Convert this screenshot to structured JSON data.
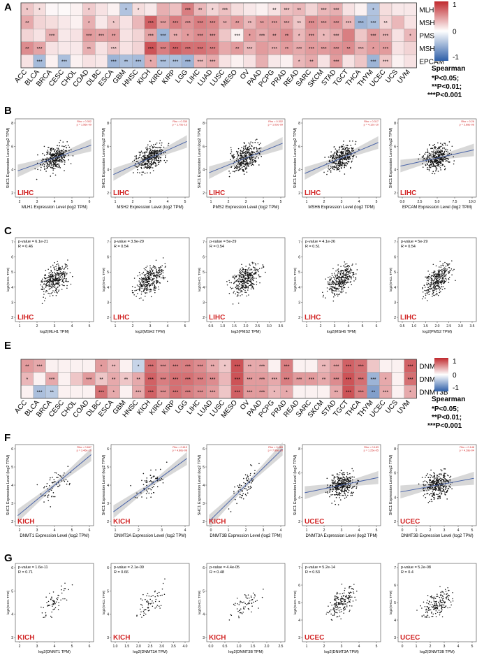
{
  "panels": {
    "A": "A",
    "B": "B",
    "C": "C",
    "E": "E",
    "F": "F",
    "G": "G"
  },
  "colors": {
    "pos": "#c0282d",
    "neg": "#2e5fa8",
    "point": "#111111",
    "fit": "#4a64a8",
    "band": "#c8c8c8",
    "tag": "#d22727"
  },
  "heatmapA": {
    "rows": [
      "MLH1",
      "MSH2",
      "PMS2",
      "MSH6",
      "EPCAM"
    ],
    "cols": [
      "ACC",
      "BLCA",
      "BRCA",
      "CESC",
      "CHOL",
      "COAD",
      "DLBC",
      "ESCA",
      "GBM",
      "HNSC",
      "KICH",
      "KIRC",
      "KIRP",
      "LGG",
      "LIHC",
      "LUAD",
      "LUSC",
      "MESO",
      "OV",
      "PAAD",
      "PCPG",
      "PRAD",
      "READ",
      "SARC",
      "SKCM",
      "STAD",
      "TGCT",
      "THCA",
      "THYM",
      "UCEC",
      "UCS",
      "UVM"
    ],
    "values": [
      [
        0.2,
        0.12,
        0.03,
        0.02,
        0.05,
        0.18,
        0.1,
        0.05,
        -0.28,
        0.12,
        0.08,
        0.28,
        0.22,
        0.45,
        0.25,
        0.15,
        0.22,
        0.12,
        0.08,
        0.05,
        0.1,
        0.22,
        0.25,
        0.15,
        0.25,
        0.28,
        0.1,
        0.05,
        -0.28,
        0.12,
        0.08,
        0.08
      ],
      [
        0.3,
        0.15,
        0.12,
        0.08,
        0.05,
        0.28,
        0.08,
        0.2,
        0.1,
        0.25,
        0.55,
        0.35,
        0.45,
        0.38,
        0.45,
        0.42,
        0.3,
        0.35,
        0.25,
        0.35,
        0.35,
        0.32,
        0.2,
        0.4,
        0.35,
        0.38,
        0.25,
        -0.35,
        -0.3,
        0.15,
        0.25,
        0.1
      ],
      [
        0.15,
        0.1,
        0.28,
        0.08,
        0.1,
        0.35,
        0.32,
        0.35,
        0.1,
        0.15,
        0.32,
        -0.35,
        0.3,
        0.35,
        0.4,
        0.38,
        0.2,
        0.05,
        0.35,
        0.3,
        0.35,
        0.4,
        0.25,
        0.35,
        0.25,
        0.3,
        0.45,
        0.2,
        0.35,
        0.28,
        0.1,
        0.25
      ],
      [
        0.4,
        0.32,
        0.1,
        0.08,
        0.08,
        0.28,
        0.1,
        0.2,
        0.1,
        0.15,
        0.6,
        0.45,
        0.55,
        0.5,
        0.5,
        0.45,
        0.3,
        0.35,
        0.25,
        0.35,
        0.3,
        0.35,
        0.3,
        0.35,
        0.35,
        0.38,
        0.4,
        0.28,
        0.35,
        0.35,
        0.1,
        0.15
      ],
      [
        0.1,
        -0.32,
        0.05,
        -0.3,
        0.05,
        0.1,
        0.08,
        -0.35,
        -0.3,
        -0.32,
        0.3,
        -0.3,
        -0.3,
        -0.35,
        0.25,
        0.3,
        0.1,
        0.05,
        0.1,
        0.28,
        0.08,
        0.05,
        0.25,
        0.3,
        0.1,
        0.35,
        0.1,
        0.2,
        -0.35,
        0.2,
        0.05,
        0.1
      ]
    ],
    "stars": [
      [
        "*",
        "*",
        "",
        "",
        "",
        "*",
        "",
        "",
        "*",
        "*",
        "",
        "",
        "",
        "***",
        "**",
        "*",
        "***",
        "",
        "",
        "",
        "**",
        "***",
        "**",
        "",
        "***",
        "***",
        "",
        "",
        "*",
        "",
        "",
        ""
      ],
      [
        "**",
        "",
        "",
        "",
        "",
        "*",
        "",
        "*",
        "",
        "",
        "***",
        "***",
        "***",
        "***",
        "***",
        "***",
        "**",
        "**",
        "**",
        "**",
        "***",
        "***",
        "**",
        "***",
        "***",
        "***",
        "***",
        "***",
        "***",
        "**",
        "",
        ""
      ],
      [
        "",
        "",
        "***",
        "",
        "",
        "***",
        "***",
        "**",
        "",
        "",
        "***",
        "***",
        "**",
        "*",
        "***",
        "***",
        "",
        "***",
        "*",
        "***",
        "**",
        "**",
        "*",
        "***",
        "*",
        "***",
        "",
        "",
        "***",
        "***",
        "",
        "*"
      ],
      [
        "**",
        "***",
        "",
        "",
        "",
        "**",
        "",
        "***",
        "",
        "",
        "***",
        "***",
        "***",
        "***",
        "***",
        "***",
        "",
        "**",
        "***",
        "",
        "***",
        "**",
        "***",
        "***",
        "***",
        "***",
        "**",
        "***",
        "*",
        "***",
        "",
        ""
      ],
      [
        "",
        "***",
        "",
        "***",
        "",
        "",
        "",
        "***",
        "**",
        "***",
        "*",
        "***",
        "***",
        "***",
        "***",
        "***",
        "",
        "",
        "",
        "",
        "",
        "",
        "*",
        "**",
        "",
        "***",
        "",
        "",
        "***",
        "***",
        "",
        ""
      ]
    ],
    "legend": {
      "title": "Spearman",
      "max": "1",
      "mid": "0",
      "min": "-1",
      "sig1": "*P<0.05;",
      "sig2": "**P<0.01;",
      "sig3": "***P<0.001"
    }
  },
  "heatmapE": {
    "rows": [
      "DNMT1",
      "DNMT3A",
      "DNMT3B"
    ],
    "cols": [
      "ACC",
      "BLCA",
      "BRCA",
      "CESC",
      "CHOL",
      "COAD",
      "DLBC",
      "ESCA",
      "GBM",
      "HNSC",
      "KICH",
      "KIRC",
      "KIRP",
      "LGG",
      "LIHC",
      "LUAD",
      "LUSC",
      "MESO",
      "OV",
      "PAAD",
      "PCPG",
      "PRAD",
      "READ",
      "SARC",
      "SKCM",
      "STAD",
      "TGCT",
      "THCA",
      "THYM",
      "UCEC",
      "UCS",
      "UVM"
    ],
    "values": [
      [
        0.35,
        0.3,
        0.05,
        0.05,
        0.05,
        0.05,
        0.35,
        0.25,
        0.05,
        -0.2,
        0.5,
        0.4,
        0.45,
        0.45,
        0.4,
        0.3,
        0.2,
        0.6,
        0.3,
        0.3,
        0.05,
        0.45,
        0.05,
        0.05,
        0.25,
        0.35,
        0.55,
        0.5,
        0.2,
        0.05,
        0.05,
        0.55
      ],
      [
        0.25,
        0.05,
        0.3,
        0.05,
        0.2,
        0.35,
        0.2,
        0.3,
        0.2,
        0.3,
        0.55,
        0.45,
        0.5,
        0.5,
        0.45,
        0.4,
        0.25,
        0.6,
        0.35,
        0.35,
        0.3,
        0.45,
        0.35,
        0.35,
        0.3,
        0.4,
        0.6,
        0.5,
        -0.35,
        0.3,
        0.05,
        0.5
      ],
      [
        0.05,
        -0.3,
        -0.25,
        0.05,
        0.05,
        0.05,
        0.5,
        0.3,
        0.05,
        0.3,
        0.55,
        0.4,
        0.5,
        0.45,
        0.4,
        0.35,
        0.2,
        0.55,
        0.35,
        0.35,
        0.25,
        0.3,
        0.05,
        0.05,
        0.05,
        0.3,
        0.6,
        0.45,
        -0.45,
        0.3,
        0.05,
        0.3
      ]
    ],
    "stars": [
      [
        "**",
        "***",
        "",
        "",
        "",
        "",
        "*",
        "**",
        "",
        "*",
        "***",
        "***",
        "***",
        "***",
        "***",
        "**",
        "*",
        "***",
        "**",
        "***",
        "",
        "***",
        "",
        "",
        "**",
        "***",
        "***",
        "***",
        "",
        "",
        "",
        "***"
      ],
      [
        "*",
        "",
        "***",
        "",
        "",
        "***",
        "**",
        "**",
        "**",
        "**",
        "***",
        "***",
        "***",
        "***",
        "***",
        "***",
        "",
        "***",
        "***",
        "***",
        "***",
        "***",
        "***",
        "***",
        "**",
        "***",
        "***",
        "***",
        "***",
        "*",
        "",
        "***"
      ],
      [
        "",
        "***",
        "**",
        "",
        "",
        "",
        "***",
        "*",
        "",
        "***",
        "***",
        "***",
        "***",
        "***",
        "***",
        "***",
        "",
        "***",
        "***",
        "***",
        "*",
        "*",
        "",
        "",
        "",
        "**",
        "***",
        "***",
        "**",
        "***",
        "",
        "*"
      ]
    ],
    "legend": {
      "title": "Spearman",
      "max": "1",
      "mid": "0",
      "min": "-1",
      "sig1": "*P<0.05;",
      "sig2": "**P<0.01;",
      "sig3": "***P<0.001"
    }
  },
  "rowB": [
    {
      "tag": "LIHC",
      "xlabel": "MLH1 Expression Level (log2 TPM)",
      "ylabel": "SHC1 Expression Level (log2 TPM)",
      "stat1": "Rho = 0.302",
      "stat2": "p = 1.56e-09",
      "xticks": [
        "2",
        "3",
        "4",
        "5",
        "6"
      ],
      "yticks": [
        "2",
        "4",
        "6",
        "8"
      ],
      "slope": 0.35,
      "seed": 11
    },
    {
      "tag": "LIHC",
      "xlabel": "MSH2 Expression Level (log2 TPM)",
      "ylabel": "SHC1 Expression Level (log2 TPM)",
      "stat1": "Rho = 0.335",
      "stat2": "p = 1.75e-13",
      "xticks": [
        "1",
        "2",
        "3",
        "4",
        "5"
      ],
      "yticks": [
        "2",
        "4",
        "6",
        "8"
      ],
      "slope": 0.45,
      "seed": 22
    },
    {
      "tag": "LIHC",
      "xlabel": "PMS2 Expression Level (log2 TPM)",
      "ylabel": "SHC1 Expression Level (log2 TPM)",
      "stat1": "Rho = 0.302",
      "stat2": "p = 1.03e-09",
      "xticks": [
        "1",
        "2",
        "3",
        "4",
        "5"
      ],
      "yticks": [
        "2",
        "4",
        "6",
        "8"
      ],
      "slope": 0.4,
      "seed": 33
    },
    {
      "tag": "LIHC",
      "xlabel": "MSH6 Expression Level (log2 TPM)",
      "ylabel": "SHC1 Expression Level (log2 TPM)",
      "stat1": "Rho = 0.317",
      "stat2": "p = 4.12e-10",
      "xticks": [
        "1",
        "2",
        "3",
        "4",
        "5"
      ],
      "yticks": [
        "2",
        "4",
        "6",
        "8"
      ],
      "slope": 0.42,
      "seed": 44
    },
    {
      "tag": "LIHC",
      "xlabel": "EPCAM Expression Level (log2 TPM)",
      "ylabel": "SHC1 Expression Level (log2 TPM)",
      "stat1": "Rho = 0.26",
      "stat2": "p = 2.88e-06",
      "xticks": [
        "0.0",
        "2.5",
        "5.0",
        "7.5",
        "10.0"
      ],
      "yticks": [
        "2",
        "4",
        "6",
        "8"
      ],
      "slope": 0.22,
      "seed": 55
    }
  ],
  "rowC": [
    {
      "tag": "LIHC",
      "xlabel": "log2(MLH1 TPM)",
      "ylabel": "log2(SHC1 TPM)",
      "stat1": "p-value = 6.1e-21",
      "stat2": "R = 0.46",
      "xticks": [
        "1",
        "2",
        "3",
        "4",
        "5"
      ],
      "yticks": [
        "2",
        "3",
        "4",
        "5",
        "6",
        "7"
      ],
      "slope": 0.5,
      "seed": 66
    },
    {
      "tag": "LIHC",
      "xlabel": "log2(MSH2 TPM)",
      "ylabel": "log2(SHC1 TPM)",
      "stat1": "p-value = 3.9e-29",
      "stat2": "R = 0.54",
      "xticks": [
        "1",
        "2",
        "3",
        "4",
        "5"
      ],
      "yticks": [
        "2",
        "3",
        "4",
        "5",
        "6",
        "7"
      ],
      "slope": 0.55,
      "seed": 77
    },
    {
      "tag": "LIHC",
      "xlabel": "log2(PMS2 TPM)",
      "ylabel": "log2(SHC1 TPM)",
      "stat1": "p-value = 5e-29",
      "stat2": "R = 0.54",
      "xticks": [
        "0.5",
        "1.0",
        "1.5",
        "2.0",
        "2.5",
        "3.0",
        "3.5"
      ],
      "yticks": [
        "2",
        "3",
        "4",
        "5",
        "6",
        "7"
      ],
      "slope": 0.55,
      "seed": 88
    },
    {
      "tag": "LIHC",
      "xlabel": "log2(MSH6 TPM)",
      "ylabel": "log2(SHC1 TPM)",
      "stat1": "p-value = 4.1e-26",
      "stat2": "R = 0.51",
      "xticks": [
        "1",
        "2",
        "3",
        "4",
        "5",
        "6"
      ],
      "yticks": [
        "2",
        "3",
        "4",
        "5",
        "6",
        "7"
      ],
      "slope": 0.52,
      "seed": 99
    },
    {
      "tag": "LIHC",
      "xlabel": "log2(PMS2 TPM)",
      "ylabel": "log2(SHC1 TPM)",
      "stat1": "p-value = 5e-29",
      "stat2": "R = 0.54",
      "xticks": [
        "0.5",
        "1.0",
        "1.5",
        "2.0",
        "2.5",
        "3.0",
        "3.5"
      ],
      "yticks": [
        "2",
        "3",
        "4",
        "5",
        "6",
        "7"
      ],
      "slope": 0.55,
      "seed": 111
    }
  ],
  "rowF": [
    {
      "tag": "KICH",
      "xlabel": "DNMT1 Expression Level (log2 TPM)",
      "ylabel": "SHC1 Expression Level (log2 TPM)",
      "stat1": "Rho = 0.667",
      "stat2": "p = 3.46e-10",
      "xticks": [
        "2",
        "3",
        "4",
        "5",
        "6"
      ],
      "yticks": [
        "2",
        "3",
        "4",
        "5",
        "6"
      ],
      "slope": 0.8,
      "seed": 121,
      "n": 65
    },
    {
      "tag": "KICH",
      "xlabel": "DNMT3A Expression Level (log2 TPM)",
      "ylabel": "SHC1 Expression Level (log2 TPM)",
      "stat1": "Rho = 0.613",
      "stat2": "p = 4.86e-08",
      "xticks": [
        "1",
        "2",
        "3",
        "4"
      ],
      "yticks": [
        "2",
        "3",
        "4",
        "5",
        "6"
      ],
      "slope": 0.7,
      "seed": 131,
      "n": 65
    },
    {
      "tag": "KICH",
      "xlabel": "DNMT3B Expression Level (log2 TPM)",
      "ylabel": "SHC1 Expression Level (log2 TPM)",
      "stat1": "Rho = 0.463",
      "stat2": "p = 7.86e-05",
      "xticks": [
        "0",
        "1",
        "2",
        "3",
        "4"
      ],
      "yticks": [
        "2",
        "3",
        "4",
        "5",
        "6"
      ],
      "slope": 0.95,
      "seed": 141,
      "n": 65
    },
    {
      "tag": "UCEC",
      "xlabel": "DNMT3A Expression Level (log2 TPM)",
      "ylabel": "SHC1 Expression Level (log2 TPM)",
      "stat1": "Rho = 0.183",
      "stat2": "p = 1.25e-05",
      "xticks": [
        "1",
        "2",
        "3",
        "4",
        "5"
      ],
      "yticks": [
        "2",
        "4",
        "6",
        "8"
      ],
      "slope": 0.2,
      "seed": 151,
      "n": 320
    },
    {
      "tag": "UCEC",
      "xlabel": "DNMT3B Expression Level (log2 TPM)",
      "ylabel": "SHC1 Expression Level (log2 TPM)",
      "stat1": "Rho = 0.148",
      "stat2": "p = 4.28e-04",
      "xticks": [
        "0",
        "1",
        "2",
        "3",
        "4",
        "5"
      ],
      "yticks": [
        "2",
        "4",
        "6",
        "8"
      ],
      "slope": 0.18,
      "seed": 161,
      "n": 320
    }
  ],
  "rowG": [
    {
      "tag": "KICH",
      "xlabel": "log2(DNMT1 TPM)",
      "ylabel": "log2(SHC1 TPM)",
      "stat1": "p-value = 1.6e-11",
      "stat2": "R = 0.71",
      "xticks": [
        "2",
        "3",
        "4",
        "5",
        "6"
      ],
      "yticks": [
        "3",
        "4",
        "5",
        "6"
      ],
      "slope": 0.75,
      "seed": 171,
      "n": 65
    },
    {
      "tag": "KICH",
      "xlabel": "log2(DNMT3A TPM)",
      "ylabel": "log2(SHC1 TPM)",
      "stat1": "p-value = 2.1e-09",
      "stat2": "R = 0.66",
      "xticks": [
        "1.0",
        "1.5",
        "2.0",
        "2.5",
        "3.0",
        "3.5",
        "4.0"
      ],
      "yticks": [
        "3",
        "4",
        "5",
        "6"
      ],
      "slope": 0.7,
      "seed": 181,
      "n": 65
    },
    {
      "tag": "KICH",
      "xlabel": "log2(DNMT3B TPM)",
      "ylabel": "log2(SHC1 TPM)",
      "stat1": "p-value = 4.4e-05",
      "stat2": "R = 0.48",
      "xticks": [
        "0.0",
        "0.5",
        "1.0",
        "1.5",
        "2.0",
        "2.5"
      ],
      "yticks": [
        "3",
        "4",
        "5",
        "6"
      ],
      "slope": 0.5,
      "seed": 191,
      "n": 65
    },
    {
      "tag": "UCEC",
      "xlabel": "log2(DNMT3A TPM)",
      "ylabel": "log2(SHC1 TPM)",
      "stat1": "p-value = 5.2e-14",
      "stat2": "R = 0.53",
      "xticks": [
        "1",
        "2",
        "3",
        "4",
        "5"
      ],
      "yticks": [
        "3",
        "4",
        "5",
        "6",
        "7"
      ],
      "slope": 0.55,
      "seed": 201,
      "n": 180
    },
    {
      "tag": "UCEC",
      "xlabel": "log2(DNMT3B TPM)",
      "ylabel": "log2(SHC1 TPM)",
      "stat1": "p-value = 5.2e-08",
      "stat2": "R = 0.4",
      "xticks": [
        "0",
        "1",
        "2",
        "3",
        "4",
        "5"
      ],
      "yticks": [
        "3",
        "4",
        "5",
        "6",
        "7"
      ],
      "slope": 0.42,
      "seed": 211,
      "n": 180
    }
  ]
}
